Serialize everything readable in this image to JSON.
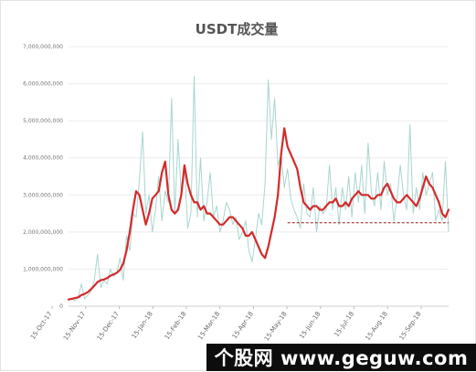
{
  "chart_data": {
    "type": "line",
    "title": "USDT成交量",
    "ylim": [
      0,
      7000000000
    ],
    "y_ticks": [
      0,
      1000000000,
      2000000000,
      3000000000,
      4000000000,
      5000000000,
      6000000000,
      7000000000
    ],
    "y_tick_labels": [
      "0",
      "1,000,000,000",
      "2,000,000,000",
      "3,000,000,000",
      "4,000,000,000",
      "5,000,000,000",
      "6,000,000,000",
      "7,000,000,000"
    ],
    "x_tick_labels": [
      "15-Oct-17",
      "15-Nov-17",
      "15-Dec-17",
      "15-Jan-18",
      "15-Feb-18",
      "15-Mar-18",
      "15-Apr-18",
      "15-May-18",
      "15-Jun-18",
      "15-Jul-18",
      "15-Aug-18",
      "15-Sep-18"
    ],
    "grid": true,
    "series": [
      {
        "role": "daily",
        "color": "#a8d5d0",
        "values": [
          180000000,
          200000000,
          150000000,
          250000000,
          600000000,
          200000000,
          300000000,
          400000000,
          700000000,
          1400000000,
          500000000,
          700000000,
          600000000,
          1000000000,
          800000000,
          900000000,
          1300000000,
          700000000,
          1900000000,
          1500000000,
          2500000000,
          2400000000,
          3400000000,
          4700000000,
          2500000000,
          3000000000,
          2000000000,
          2600000000,
          3500000000,
          2300000000,
          3100000000,
          2800000000,
          5600000000,
          2500000000,
          4500000000,
          3000000000,
          3800000000,
          2100000000,
          2500000000,
          6200000000,
          2400000000,
          4000000000,
          2300000000,
          2800000000,
          3600000000,
          2400000000,
          2700000000,
          2000000000,
          2300000000,
          2800000000,
          2600000000,
          2200000000,
          2400000000,
          1800000000,
          2000000000,
          2300000000,
          1500000000,
          1200000000,
          1800000000,
          2500000000,
          2200000000,
          3300000000,
          6100000000,
          4500000000,
          5600000000,
          3800000000,
          4100000000,
          3200000000,
          3700000000,
          2900000000,
          2600000000,
          2400000000,
          2100000000,
          3300000000,
          2500000000,
          2400000000,
          3200000000,
          2000000000,
          2700000000,
          2500000000,
          2600000000,
          3800000000,
          2600000000,
          3200000000,
          2200000000,
          3200000000,
          2600000000,
          3500000000,
          2400000000,
          3600000000,
          2800000000,
          3800000000,
          2500000000,
          4400000000,
          3100000000,
          2700000000,
          3600000000,
          2600000000,
          3900000000,
          3000000000,
          3300000000,
          2300000000,
          2900000000,
          3800000000,
          3000000000,
          2600000000,
          4900000000,
          2500000000,
          3200000000,
          2600000000,
          3600000000,
          3000000000,
          3300000000,
          3600000000,
          2300000000,
          2600000000,
          2300000000,
          3900000000,
          2000000000
        ]
      },
      {
        "role": "moving-average",
        "color": "#d42a2a",
        "values": [
          180000000,
          200000000,
          220000000,
          240000000,
          300000000,
          330000000,
          380000000,
          460000000,
          550000000,
          650000000,
          700000000,
          720000000,
          760000000,
          820000000,
          860000000,
          900000000,
          980000000,
          1150000000,
          1500000000,
          2000000000,
          2600000000,
          3100000000,
          3000000000,
          2600000000,
          2200000000,
          2500000000,
          2900000000,
          3000000000,
          3100000000,
          3600000000,
          3900000000,
          3000000000,
          2600000000,
          2500000000,
          2600000000,
          3000000000,
          3800000000,
          3300000000,
          3000000000,
          2800000000,
          2800000000,
          2600000000,
          2700000000,
          2500000000,
          2500000000,
          2400000000,
          2300000000,
          2200000000,
          2200000000,
          2300000000,
          2400000000,
          2400000000,
          2300000000,
          2200000000,
          2100000000,
          1900000000,
          1900000000,
          2000000000,
          1800000000,
          1600000000,
          1400000000,
          1300000000,
          1600000000,
          2000000000,
          2400000000,
          3000000000,
          4100000000,
          4800000000,
          4300000000,
          4100000000,
          3900000000,
          3700000000,
          3200000000,
          2800000000,
          2700000000,
          2600000000,
          2700000000,
          2700000000,
          2600000000,
          2600000000,
          2700000000,
          2800000000,
          2800000000,
          2900000000,
          2700000000,
          2700000000,
          2800000000,
          2700000000,
          2900000000,
          3000000000,
          3100000000,
          3000000000,
          3000000000,
          3000000000,
          2900000000,
          2900000000,
          3000000000,
          3000000000,
          3200000000,
          3300000000,
          3100000000,
          2900000000,
          2800000000,
          2800000000,
          2900000000,
          3000000000,
          2900000000,
          2800000000,
          2700000000,
          2900000000,
          3200000000,
          3500000000,
          3300000000,
          3200000000,
          3000000000,
          2800000000,
          2500000000,
          2400000000,
          2600000000
        ]
      },
      {
        "role": "reference-line",
        "color": "#9b1c1c",
        "dashed": true,
        "start_index": 68,
        "end_index": 118,
        "value": 2250000000
      }
    ]
  },
  "watermark": {
    "text": "个股网 www.geguw.com"
  }
}
